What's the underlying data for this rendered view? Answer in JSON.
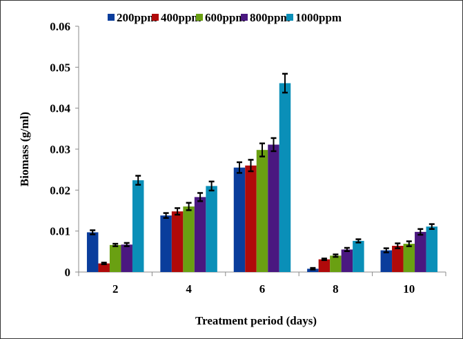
{
  "chart_data": {
    "type": "bar",
    "title": "",
    "xlabel": "Treatment period (days)",
    "ylabel": "Biomass (g/ml)",
    "ylim": [
      0,
      0.06
    ],
    "yticks": [
      "0",
      "0.01",
      "0.02",
      "0.03",
      "0.04",
      "0.05",
      "0.06"
    ],
    "categories": [
      "2",
      "4",
      "6",
      "8",
      "10"
    ],
    "legend_position": "top",
    "grid": false,
    "series": [
      {
        "name": "200ppm",
        "color": "#0a3d9c",
        "values": [
          0.0097,
          0.0138,
          0.0255,
          0.0008,
          0.0053
        ],
        "errors": [
          0.0005,
          0.0006,
          0.0013,
          0.0002,
          0.0005
        ]
      },
      {
        "name": "400ppm",
        "color": "#b00a0a",
        "values": [
          0.0021,
          0.0148,
          0.026,
          0.0031,
          0.0064
        ],
        "errors": [
          0.0002,
          0.0008,
          0.0014,
          0.0002,
          0.0006
        ]
      },
      {
        "name": "600ppm",
        "color": "#6aa012",
        "values": [
          0.0066,
          0.016,
          0.0298,
          0.004,
          0.0069
        ],
        "errors": [
          0.0003,
          0.0009,
          0.0016,
          0.0003,
          0.0006
        ]
      },
      {
        "name": "800ppm",
        "color": "#4a1880",
        "values": [
          0.0067,
          0.0183,
          0.0311,
          0.0055,
          0.0098
        ],
        "errors": [
          0.0004,
          0.001,
          0.0016,
          0.0004,
          0.0007
        ]
      },
      {
        "name": "1000ppm",
        "color": "#0a8fb8",
        "values": [
          0.0224,
          0.021,
          0.0461,
          0.0076,
          0.0111
        ],
        "errors": [
          0.0011,
          0.0011,
          0.0023,
          0.0004,
          0.0006
        ]
      }
    ]
  }
}
